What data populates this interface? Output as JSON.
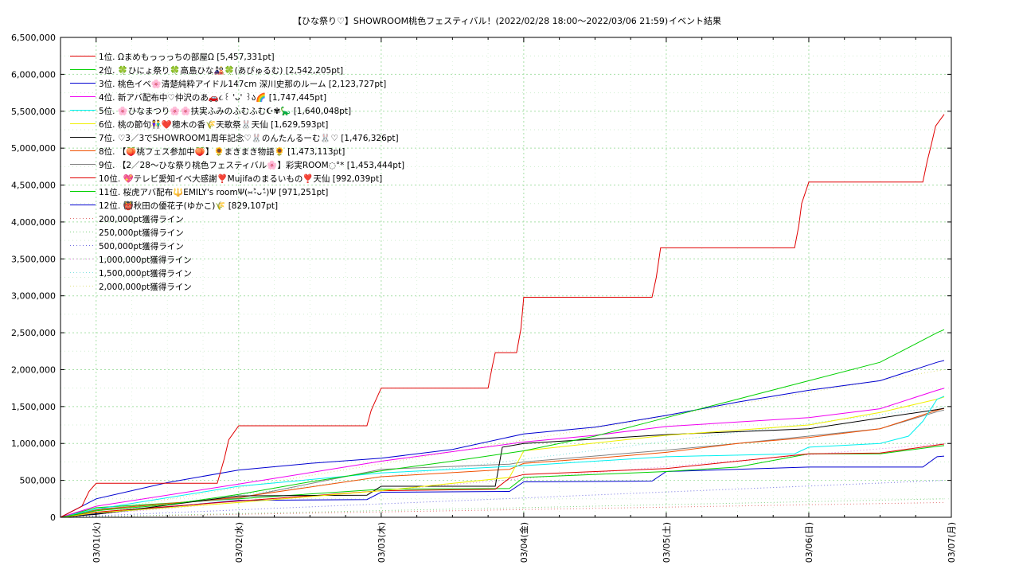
{
  "chart_data": {
    "type": "line",
    "title": "【ひな祭り♡】SHOWROOM桃色フェスティバル！(2022/02/28 18:00～2022/03/06 21:59)",
    "subtitle": "イベント結果",
    "xlabel": "",
    "ylabel": "",
    "ylim": [
      0,
      6500000
    ],
    "xlim": [
      -0.25,
      6.0
    ],
    "grid": true,
    "legend_position": "top-left",
    "y_ticks": [
      "0",
      "500,000",
      "1,000,000",
      "1,500,000",
      "2,000,000",
      "2,500,000",
      "3,000,000",
      "3,500,000",
      "4,000,000",
      "4,500,000",
      "5,000,000",
      "5,500,000",
      "6,000,000",
      "6,500,000"
    ],
    "x_ticks": [
      {
        "t": 0,
        "label": "03/01(火)"
      },
      {
        "t": 1,
        "label": "03/02(水)"
      },
      {
        "t": 2,
        "label": "03/03(木)"
      },
      {
        "t": 3,
        "label": "03/04(金)"
      },
      {
        "t": 4,
        "label": "03/05(土)"
      },
      {
        "t": 5,
        "label": "03/06(日)"
      },
      {
        "t": 6,
        "label": "03/07(月)"
      }
    ],
    "series": [
      {
        "name": "1位. Ωまめもっっっちの部屋Ω [5,457,331pt]",
        "color": "#e00000",
        "x": [
          -0.25,
          -0.1,
          -0.05,
          0.0,
          0.85,
          0.9,
          0.93,
          1.0,
          1.9,
          1.93,
          2.0,
          2.75,
          2.78,
          2.8,
          2.95,
          2.98,
          3.0,
          3.9,
          3.93,
          3.96,
          4.9,
          4.93,
          4.95,
          5.0,
          5.8,
          5.83,
          5.86,
          5.89,
          5.95
        ],
        "y": [
          0,
          150000,
          350000,
          460000,
          460000,
          800000,
          1050000,
          1240000,
          1240000,
          1450000,
          1750000,
          1750000,
          2050000,
          2230000,
          2230000,
          2550000,
          2980000,
          2980000,
          3250000,
          3650000,
          3650000,
          3950000,
          4250000,
          4540000,
          4540000,
          4820000,
          5050000,
          5300000,
          5457331
        ]
      },
      {
        "name": "2位. 🍀ひにょ祭り🍀高島ひな🎎🍀(あぴゅるむ) [2,542,205pt]",
        "color": "#00d000",
        "x": [
          -0.25,
          0.0,
          0.5,
          1.0,
          1.5,
          2.0,
          2.5,
          3.0,
          3.5,
          4.0,
          4.5,
          5.0,
          5.5,
          5.9,
          5.95
        ],
        "y": [
          0,
          90000,
          170000,
          310000,
          480000,
          630000,
          760000,
          900000,
          1100000,
          1350000,
          1600000,
          1850000,
          2100000,
          2500000,
          2542205
        ]
      },
      {
        "name": "3位. 桃色イベ🌸清楚純粋アイドル147cm 深川史那のルーム [2,123,727pt]",
        "color": "#0000d0",
        "x": [
          -0.25,
          0.0,
          0.5,
          1.0,
          1.5,
          2.0,
          2.5,
          3.0,
          3.5,
          4.0,
          4.5,
          5.0,
          5.5,
          5.9,
          5.95
        ],
        "y": [
          0,
          250000,
          470000,
          640000,
          730000,
          800000,
          920000,
          1130000,
          1220000,
          1380000,
          1560000,
          1720000,
          1850000,
          2100000,
          2123727
        ]
      },
      {
        "name": "4位. 新アバ配布中♡仲沢のあ🚗૮꒰ 'ᴗ' ꒱ა🌈 [1,747,445pt]",
        "color": "#f000f0",
        "x": [
          -0.25,
          0.0,
          1.0,
          2.0,
          3.0,
          3.5,
          4.0,
          4.5,
          5.0,
          5.5,
          5.9,
          5.95
        ],
        "y": [
          0,
          150000,
          450000,
          760000,
          1020000,
          1110000,
          1230000,
          1290000,
          1350000,
          1470000,
          1720000,
          1747445
        ]
      },
      {
        "name": "5位. 🌸ひなまつり🌸🌸扶実ふみのふむふむ☪︎✾🦕 [1,640,048pt]",
        "color": "#00f0f0",
        "x": [
          -0.25,
          0.0,
          1.0,
          2.0,
          3.0,
          4.0,
          4.9,
          5.0,
          5.5,
          5.7,
          5.8,
          5.9,
          5.95
        ],
        "y": [
          0,
          110000,
          420000,
          600000,
          700000,
          820000,
          860000,
          950000,
          1000000,
          1100000,
          1300000,
          1600000,
          1640048
        ]
      },
      {
        "name": "6位. 桃の節句👫❤️穂木の香🌾天歌祭🐰天仙 [1,629,593pt]",
        "color": "#f0f000",
        "x": [
          -0.25,
          0.0,
          1.0,
          2.0,
          2.9,
          3.0,
          4.0,
          5.0,
          5.5,
          5.9,
          5.95
        ],
        "y": [
          0,
          60000,
          200000,
          360000,
          540000,
          900000,
          1110000,
          1250000,
          1420000,
          1600000,
          1629593
        ]
      },
      {
        "name": "7位. ♡3／3でSHOWROOM1周年記念♡🐰のんたんるーむ🐰♡ [1,476,326pt]",
        "color": "#000000",
        "x": [
          -0.25,
          0.0,
          1.0,
          1.9,
          2.0,
          2.8,
          2.85,
          3.0,
          3.5,
          4.0,
          5.0,
          5.9,
          5.95
        ],
        "y": [
          0,
          40000,
          290000,
          300000,
          420000,
          420000,
          950000,
          1000000,
          1060000,
          1120000,
          1200000,
          1460000,
          1476326
        ]
      },
      {
        "name": "8位. 【🍑桃フェス参加中🍑】🌻まきまき物語🌻 [1,473,113pt]",
        "color": "#f05000",
        "x": [
          -0.25,
          0.0,
          1.0,
          2.0,
          2.9,
          3.0,
          3.5,
          4.0,
          4.5,
          5.0,
          5.5,
          5.9,
          5.95
        ],
        "y": [
          0,
          100000,
          270000,
          550000,
          650000,
          730000,
          800000,
          880000,
          1000000,
          1080000,
          1200000,
          1450000,
          1473113
        ]
      },
      {
        "name": "9位. 【2／28～ひな祭り桃色フェスティバル🌸】彩実ROOM◌°*  [1,453,444pt]",
        "color": "#808080",
        "x": [
          -0.25,
          0.0,
          1.0,
          2.0,
          2.9,
          3.0,
          4.0,
          4.5,
          5.0,
          5.5,
          5.9,
          5.95
        ],
        "y": [
          0,
          110000,
          260000,
          650000,
          720000,
          750000,
          910000,
          1000000,
          1100000,
          1200000,
          1430000,
          1453444
        ]
      },
      {
        "name": "10位. 💖テレビ愛知イベ大感謝❣️Mujifaのまるいもの❣️天仙 [992,039pt]",
        "color": "#e00000",
        "x": [
          -0.25,
          0.0,
          1.0,
          2.0,
          2.8,
          2.9,
          3.0,
          4.0,
          4.5,
          5.0,
          5.5,
          5.9,
          5.95
        ],
        "y": [
          0,
          70000,
          220000,
          360000,
          380000,
          530000,
          580000,
          660000,
          760000,
          860000,
          870000,
          980000,
          992039
        ]
      },
      {
        "name": "11位. 桜虎アバ配布🔱EMILY's roomΨ(⑅˃̵ᴗ˂̵)Ψ [971,251pt]",
        "color": "#00d000",
        "x": [
          -0.25,
          0.0,
          1.0,
          2.0,
          2.9,
          3.0,
          4.0,
          4.5,
          5.0,
          5.5,
          5.9,
          5.95
        ],
        "y": [
          0,
          130000,
          250000,
          380000,
          390000,
          540000,
          620000,
          680000,
          860000,
          860000,
          960000,
          971251
        ]
      },
      {
        "name": "12位. 👹秋田の優花子(ゆかこ)🌾 [829,107pt]",
        "color": "#0000d0",
        "x": [
          -0.25,
          0.0,
          1.0,
          1.9,
          2.0,
          2.9,
          3.0,
          3.9,
          4.0,
          5.0,
          5.8,
          5.9,
          5.95
        ],
        "y": [
          0,
          50000,
          230000,
          240000,
          340000,
          350000,
          480000,
          490000,
          620000,
          680000,
          680000,
          820000,
          829107
        ]
      }
    ],
    "target_lines": [
      {
        "name": "200,000pt獲得ライン",
        "color": "#e07070",
        "x": [
          -0.25,
          5.95
        ],
        "y": [
          0,
          200000
        ]
      },
      {
        "name": "250,000pt獲得ライン",
        "color": "#80d080",
        "x": [
          -0.25,
          5.95
        ],
        "y": [
          0,
          250000
        ]
      },
      {
        "name": "500,000pt獲得ライン",
        "color": "#7070e0",
        "x": [
          -0.25,
          5.95
        ],
        "y": [
          0,
          500000
        ]
      },
      {
        "name": "1,000,000pt獲得ライン",
        "color": "#e080e0",
        "x": [
          -0.25,
          5.95
        ],
        "y": [
          0,
          1000000
        ]
      },
      {
        "name": "1,500,000pt獲得ライン",
        "color": "#80e0e0",
        "x": [
          -0.25,
          5.95
        ],
        "y": [
          0,
          1500000
        ]
      },
      {
        "name": "2,000,000pt獲得ライン",
        "color": "#e0e080",
        "x": [
          -0.25,
          5.95
        ],
        "y": [
          0,
          2000000
        ]
      }
    ]
  }
}
